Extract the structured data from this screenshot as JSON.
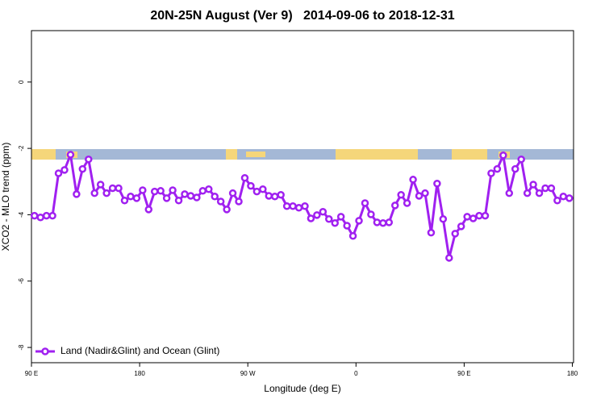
{
  "chart_data": {
    "type": "line",
    "title": "20N-25N August (Ver 9)   2014-09-06 to 2018-12-31",
    "x_label": "Longitude (deg E)",
    "y_label": "XCO2 - MLO trend (ppm)",
    "xlim": [
      90,
      541
    ],
    "ylim": [
      -8.46,
      1.55
    ],
    "xticks": [
      {
        "value": 90,
        "label": "90 E"
      },
      180,
      {
        "value": 270,
        "label": "90 W"
      },
      {
        "value": 360,
        "label": "0"
      },
      {
        "value": 450,
        "label": "90 E"
      },
      {
        "value": 540,
        "label": "180"
      }
    ],
    "yticks": [
      0,
      -2,
      -4,
      -6,
      -8
    ],
    "grid": false,
    "legend": "bottom-left",
    "x": [
      92.5,
      97.5,
      102.5,
      107.5,
      112.5,
      117.5,
      122.5,
      127.5,
      132.5,
      137.5,
      142.5,
      147.5,
      152.5,
      157.5,
      162.5,
      167.5,
      172.5,
      177.5,
      182.5,
      187.5,
      192.5,
      197.5,
      202.5,
      207.5,
      212.5,
      217.5,
      222.5,
      227.5,
      232.5,
      237.5,
      242.5,
      247.5,
      252.5,
      257.5,
      262.5,
      267.5,
      272.5,
      277.5,
      282.5,
      287.5,
      292.5,
      297.5,
      302.5,
      307.5,
      312.5,
      317.5,
      322.5,
      327.5,
      332.5,
      337.5,
      342.5,
      347.5,
      352.5,
      357.5,
      362.5,
      367.5,
      372.5,
      377.5,
      382.5,
      387.5,
      392.5,
      397.5,
      402.5,
      407.5,
      412.5,
      417.5,
      422.5,
      427.5,
      432.5,
      437.5,
      442.5,
      447.5,
      452.5,
      457.5,
      462.5,
      467.5,
      472.5,
      477.5,
      482.5,
      487.5,
      492.5,
      497.5,
      502.5,
      507.5,
      512.5,
      517.5,
      522.5,
      527.5,
      532.5,
      537.5
    ],
    "series": [
      {
        "name": "Land (Nadir&Glint) and Ocean (Glint)",
        "color": "#a020f0",
        "values": [
          -4.03,
          -4.08,
          -4.03,
          -4.03,
          -2.75,
          -2.65,
          -2.19,
          -3.38,
          -2.62,
          -2.33,
          -3.35,
          -3.09,
          -3.35,
          -3.2,
          -3.2,
          -3.57,
          -3.45,
          -3.5,
          -3.26,
          -3.84,
          -3.3,
          -3.28,
          -3.5,
          -3.26,
          -3.57,
          -3.38,
          -3.43,
          -3.48,
          -3.28,
          -3.23,
          -3.45,
          -3.6,
          -3.84,
          -3.35,
          -3.6,
          -2.89,
          -3.13,
          -3.3,
          -3.23,
          -3.43,
          -3.45,
          -3.4,
          -3.74,
          -3.74,
          -3.79,
          -3.74,
          -4.11,
          -4.01,
          -3.91,
          -4.13,
          -4.25,
          -4.06,
          -4.33,
          -4.64,
          -4.18,
          -3.65,
          -3.99,
          -4.23,
          -4.25,
          -4.23,
          -3.72,
          -3.4,
          -3.65,
          -2.94,
          -3.43,
          -3.35,
          -4.54,
          -3.06,
          -4.13,
          -5.3,
          -4.57,
          -4.35,
          -4.06,
          -4.11,
          -4.03,
          -4.03,
          -2.75,
          -2.62,
          -2.21,
          -3.35,
          -2.62,
          -2.33,
          -3.35,
          -3.09,
          -3.35,
          -3.2,
          -3.2,
          -3.57,
          -3.45,
          -3.5
        ]
      }
    ]
  }
}
